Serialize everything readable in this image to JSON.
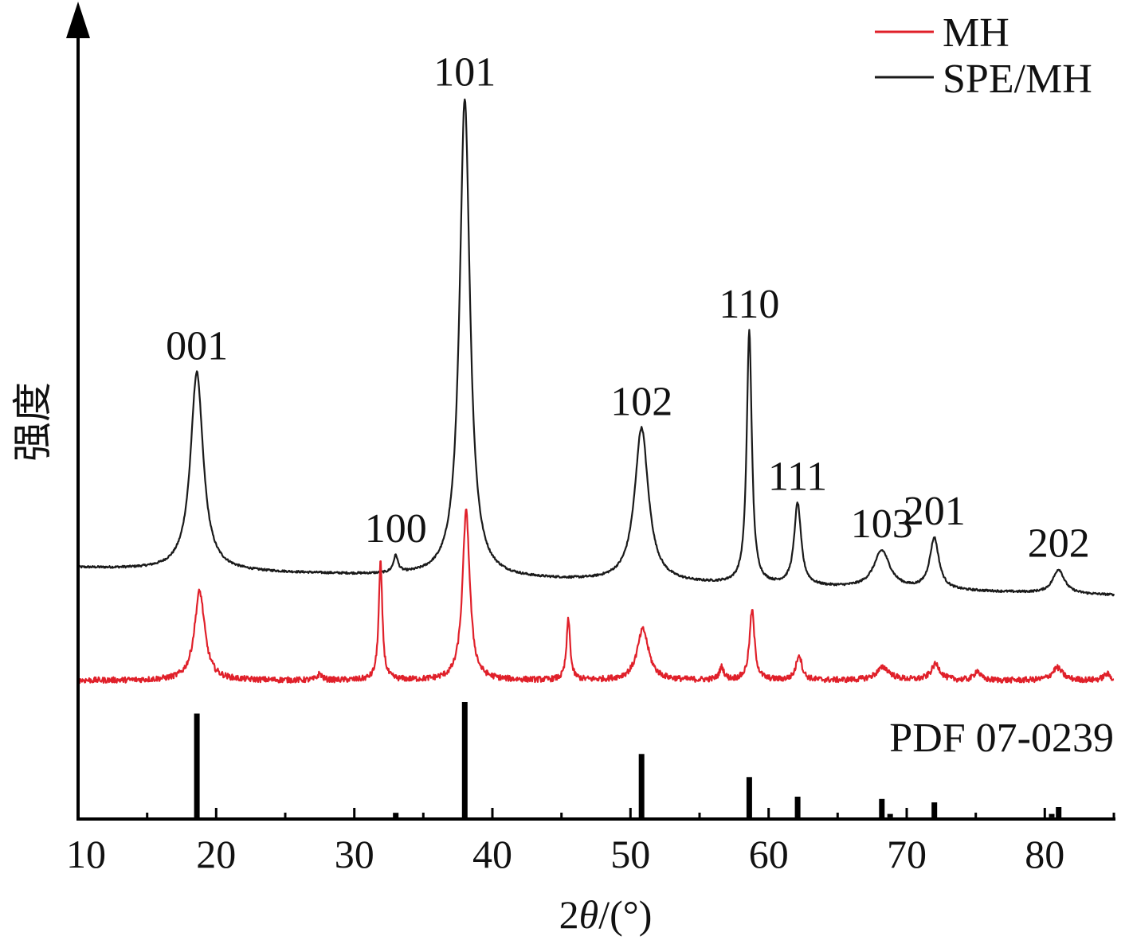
{
  "chart_data": {
    "type": "line",
    "xlabel": "2θ/(°)",
    "ylabel": "强度",
    "xlim": [
      10,
      85
    ],
    "x_ticks": [
      10,
      20,
      30,
      40,
      50,
      60,
      70,
      80
    ],
    "x_tick_labels": [
      "10",
      "20",
      "30",
      "40",
      "50",
      "60",
      "70",
      "80"
    ],
    "y_ticks": [],
    "grid": false,
    "legend": {
      "placement": "top-right",
      "entries": [
        {
          "name": "MH",
          "color": "#e0202a"
        },
        {
          "name": "SPE/MH",
          "color": "#1a1a1a"
        }
      ]
    },
    "series": [
      {
        "name": "SPE/MH",
        "color": "#1a1a1a",
        "baseline": {
          "start": 0.08,
          "end": 0.0
        },
        "noise": 0.003,
        "peaks": [
          {
            "x": 18.6,
            "height": 0.58,
            "width": 0.55,
            "label": "001"
          },
          {
            "x": 33.0,
            "height": 0.05,
            "width": 0.2,
            "label": "100"
          },
          {
            "x": 38.0,
            "height": 1.4,
            "width": 0.45,
            "label": "101"
          },
          {
            "x": 50.8,
            "height": 0.45,
            "width": 0.6,
            "label": "102"
          },
          {
            "x": 58.6,
            "height": 0.74,
            "width": 0.22,
            "label": "110"
          },
          {
            "x": 62.1,
            "height": 0.24,
            "width": 0.3,
            "label": "111"
          },
          {
            "x": 68.2,
            "height": 0.11,
            "width": 0.7,
            "label": "103"
          },
          {
            "x": 72.0,
            "height": 0.15,
            "width": 0.4,
            "label": "201"
          },
          {
            "x": 81.0,
            "height": 0.07,
            "width": 0.5,
            "label": "202"
          }
        ]
      },
      {
        "name": "MH",
        "color": "#e0202a",
        "baseline": {
          "start": 0.0,
          "end": 0.0
        },
        "noise": 0.009,
        "peaks": [
          {
            "x": 18.8,
            "height": 0.28,
            "width": 0.45
          },
          {
            "x": 27.5,
            "height": 0.02,
            "width": 0.2
          },
          {
            "x": 31.9,
            "height": 0.37,
            "width": 0.16
          },
          {
            "x": 38.1,
            "height": 0.53,
            "width": 0.32
          },
          {
            "x": 45.5,
            "height": 0.19,
            "width": 0.16
          },
          {
            "x": 50.9,
            "height": 0.16,
            "width": 0.5
          },
          {
            "x": 56.6,
            "height": 0.04,
            "width": 0.2
          },
          {
            "x": 58.8,
            "height": 0.22,
            "width": 0.22
          },
          {
            "x": 62.2,
            "height": 0.08,
            "width": 0.25
          },
          {
            "x": 68.3,
            "height": 0.04,
            "width": 0.6
          },
          {
            "x": 72.1,
            "height": 0.05,
            "width": 0.4
          },
          {
            "x": 75.1,
            "height": 0.03,
            "width": 0.25
          },
          {
            "x": 80.9,
            "height": 0.04,
            "width": 0.45
          },
          {
            "x": 84.5,
            "height": 0.02,
            "width": 0.3
          }
        ]
      }
    ],
    "reference": {
      "label": "PDF 07-0239",
      "lines": [
        {
          "x": 18.6,
          "intensity": 0.9
        },
        {
          "x": 33.0,
          "intensity": 0.04
        },
        {
          "x": 38.0,
          "intensity": 1.0
        },
        {
          "x": 50.8,
          "intensity": 0.55
        },
        {
          "x": 58.6,
          "intensity": 0.35
        },
        {
          "x": 62.1,
          "intensity": 0.18
        },
        {
          "x": 68.2,
          "intensity": 0.16
        },
        {
          "x": 68.8,
          "intensity": 0.03
        },
        {
          "x": 72.0,
          "intensity": 0.13
        },
        {
          "x": 80.5,
          "intensity": 0.03
        },
        {
          "x": 81.0,
          "intensity": 0.09
        }
      ]
    }
  }
}
